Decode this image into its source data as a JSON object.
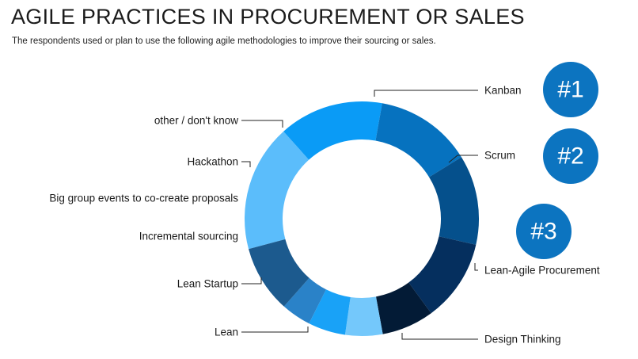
{
  "header": {
    "title": "AGILE PRACTICES IN PROCUREMENT OR SALES",
    "subtitle": "The respondents used or plan to use the following agile methodologies to improve their sourcing or sales."
  },
  "chart_data": {
    "type": "pie",
    "style": "donut",
    "title": "AGILE PRACTICES IN PROCUREMENT OR SALES",
    "subtitle": "The respondents used or plan to use the following agile methodologies to improve their sourcing or sales.",
    "categories": [
      "Kanban",
      "Scrum",
      "Lean-Agile Procurement",
      "Design Thinking",
      "Lean",
      "Lean Startup",
      "Incremental sourcing",
      "Big group events to co-create proposals",
      "Hackathon",
      "other / don't know"
    ],
    "values": [
      17,
      14,
      13,
      12,
      11,
      7,
      5,
      5,
      4,
      9
    ],
    "colors": [
      "#5bbdfb",
      "#0a9bf6",
      "#0672bf",
      "#05508c",
      "#052f5e",
      "#031b36",
      "#74c8fb",
      "#19a2f7",
      "#2a82c8",
      "#1c5a8e"
    ],
    "ranks": [
      "#1",
      "#2",
      "#3"
    ],
    "rank_color": "#0c74c0"
  }
}
